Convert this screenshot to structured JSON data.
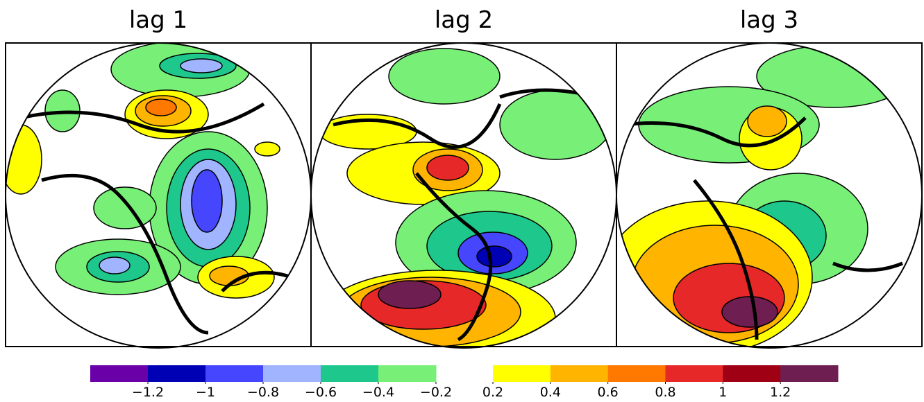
{
  "panels": [
    {
      "title": "lag 1"
    },
    {
      "title": "lag 2"
    },
    {
      "title": "lag 3"
    }
  ],
  "colorbar": {
    "negative": {
      "lim": [
        -1.4,
        -0.2
      ],
      "colors": [
        "#6a00a8",
        "#0000b4",
        "#4646ff",
        "#a0b4ff",
        "#1ec88c",
        "#78f078"
      ],
      "ticks": [
        {
          "value": -1.2,
          "label": "−1.2"
        },
        {
          "value": -1,
          "label": "−1"
        },
        {
          "value": -0.8,
          "label": "−0.8"
        },
        {
          "value": -0.6,
          "label": "−0.6"
        },
        {
          "value": -0.4,
          "label": "−0.4"
        },
        {
          "value": -0.2,
          "label": "−0.2"
        }
      ]
    },
    "positive": {
      "lim": [
        0.2,
        1.4
      ],
      "colors": [
        "#ffff00",
        "#ffb400",
        "#ff7800",
        "#e62828",
        "#a00014",
        "#6e1e50"
      ],
      "ticks": [
        0.2,
        0.4,
        0.6,
        0.8,
        1,
        1.2
      ]
    }
  }
}
